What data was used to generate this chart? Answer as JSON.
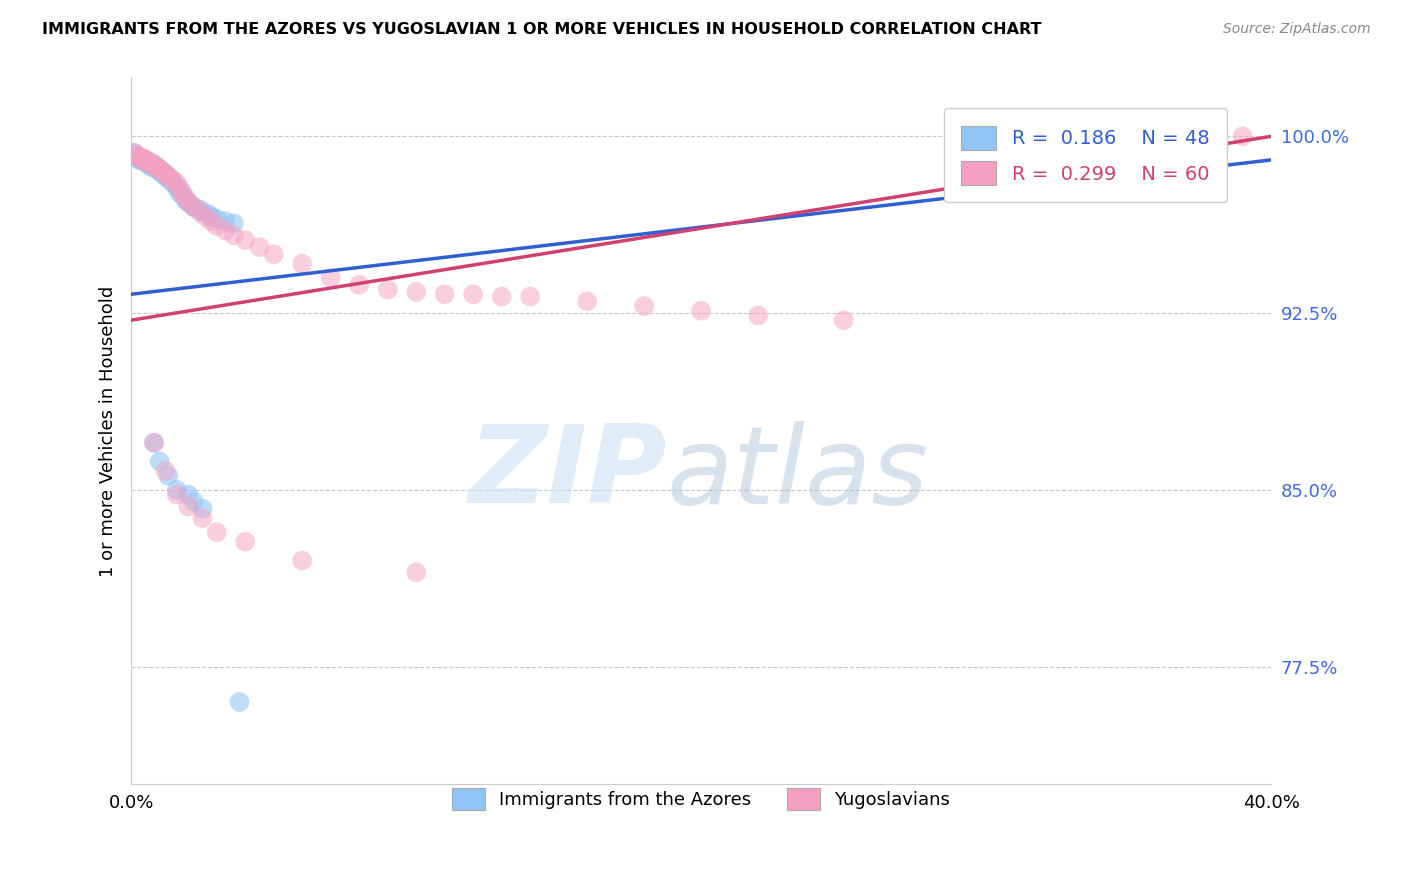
{
  "title": "IMMIGRANTS FROM THE AZORES VS YUGOSLAVIAN 1 OR MORE VEHICLES IN HOUSEHOLD CORRELATION CHART",
  "source": "Source: ZipAtlas.com",
  "ylabel": "1 or more Vehicles in Household",
  "xlim": [
    0.0,
    0.4
  ],
  "ylim": [
    0.725,
    1.025
  ],
  "yticks": [
    0.775,
    0.85,
    0.925,
    1.0
  ],
  "ytick_labels": [
    "77.5%",
    "85.0%",
    "92.5%",
    "100.0%"
  ],
  "blue_color": "#92c5f5",
  "pink_color": "#f5a0c0",
  "blue_line_color": "#3060d0",
  "pink_line_color": "#d04070",
  "blue_R": 0.186,
  "blue_N": 48,
  "pink_R": 0.299,
  "pink_N": 60,
  "blue_x": [
    0.001,
    0.002,
    0.003,
    0.003,
    0.004,
    0.004,
    0.005,
    0.005,
    0.006,
    0.006,
    0.007,
    0.007,
    0.008,
    0.008,
    0.009,
    0.009,
    0.01,
    0.01,
    0.011,
    0.011,
    0.012,
    0.012,
    0.013,
    0.013,
    0.014,
    0.015,
    0.016,
    0.017,
    0.018,
    0.019,
    0.02,
    0.021,
    0.022,
    0.024,
    0.025,
    0.027,
    0.028,
    0.03,
    0.033,
    0.036,
    0.008,
    0.01,
    0.013,
    0.016,
    0.02,
    0.022,
    0.025,
    0.038
  ],
  "blue_y": [
    0.993,
    0.991,
    0.99,
    0.99,
    0.99,
    0.99,
    0.989,
    0.99,
    0.989,
    0.988,
    0.988,
    0.987,
    0.988,
    0.987,
    0.987,
    0.986,
    0.986,
    0.985,
    0.985,
    0.984,
    0.984,
    0.983,
    0.983,
    0.982,
    0.981,
    0.98,
    0.978,
    0.976,
    0.975,
    0.973,
    0.972,
    0.971,
    0.97,
    0.969,
    0.968,
    0.967,
    0.966,
    0.965,
    0.964,
    0.963,
    0.87,
    0.862,
    0.856,
    0.85,
    0.848,
    0.845,
    0.842,
    0.76
  ],
  "pink_x": [
    0.001,
    0.002,
    0.003,
    0.003,
    0.004,
    0.004,
    0.005,
    0.005,
    0.006,
    0.006,
    0.007,
    0.007,
    0.008,
    0.009,
    0.01,
    0.01,
    0.011,
    0.012,
    0.013,
    0.014,
    0.015,
    0.016,
    0.017,
    0.018,
    0.019,
    0.02,
    0.022,
    0.024,
    0.026,
    0.028,
    0.03,
    0.033,
    0.036,
    0.04,
    0.045,
    0.05,
    0.06,
    0.07,
    0.08,
    0.09,
    0.1,
    0.11,
    0.12,
    0.13,
    0.14,
    0.16,
    0.18,
    0.2,
    0.22,
    0.25,
    0.008,
    0.012,
    0.016,
    0.02,
    0.025,
    0.03,
    0.04,
    0.06,
    0.1,
    0.39
  ],
  "pink_y": [
    0.993,
    0.992,
    0.991,
    0.991,
    0.991,
    0.99,
    0.99,
    0.99,
    0.989,
    0.989,
    0.989,
    0.988,
    0.988,
    0.987,
    0.986,
    0.986,
    0.985,
    0.984,
    0.983,
    0.982,
    0.981,
    0.98,
    0.978,
    0.976,
    0.974,
    0.972,
    0.97,
    0.968,
    0.966,
    0.964,
    0.962,
    0.96,
    0.958,
    0.956,
    0.953,
    0.95,
    0.946,
    0.94,
    0.937,
    0.935,
    0.934,
    0.933,
    0.933,
    0.932,
    0.932,
    0.93,
    0.928,
    0.926,
    0.924,
    0.922,
    0.87,
    0.858,
    0.848,
    0.843,
    0.838,
    0.832,
    0.828,
    0.82,
    0.815,
    1.0
  ]
}
